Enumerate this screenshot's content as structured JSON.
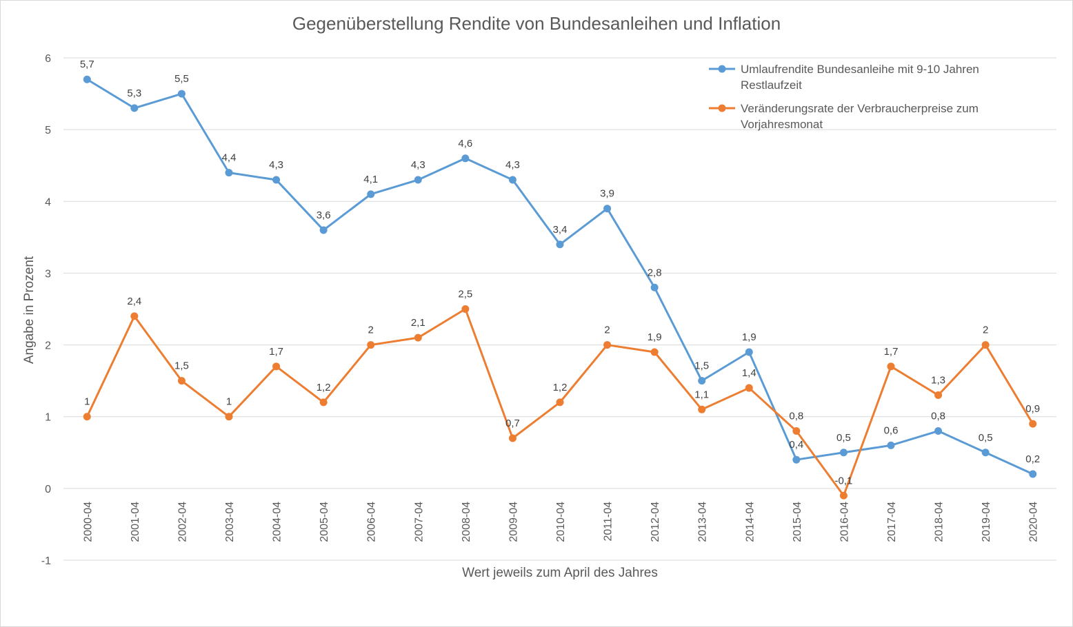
{
  "chart_data": {
    "type": "line",
    "title": "Gegenüberstellung Rendite von Bundesanleihen und Inflation",
    "xlabel": "Wert jeweils zum April des Jahres",
    "ylabel": "Angabe in Prozent",
    "ylim": [
      -1,
      6
    ],
    "yticks": [
      "-1",
      "0",
      "1",
      "2",
      "3",
      "4",
      "5",
      "6"
    ],
    "grid": true,
    "legend_position": "top-right",
    "categories": [
      "2000-04",
      "2001-04",
      "2002-04",
      "2003-04",
      "2004-04",
      "2005-04",
      "2006-04",
      "2007-04",
      "2008-04",
      "2009-04",
      "2010-04",
      "2011-04",
      "2012-04",
      "2013-04",
      "2014-04",
      "2015-04",
      "2016-04",
      "2017-04",
      "2018-04",
      "2019-04",
      "2020-04"
    ],
    "series": [
      {
        "name": "Umlaufrendite Bundesanleihe mit 9-10 Jahren Restlaufzeit",
        "legend_lines": [
          "Umlaufrendite Bundesanleihe mit 9-10 Jahren",
          "Restlaufzeit"
        ],
        "color": "#5b9bd5",
        "values": [
          5.7,
          5.3,
          5.5,
          4.4,
          4.3,
          3.6,
          4.1,
          4.3,
          4.6,
          4.3,
          3.4,
          3.9,
          2.8,
          1.5,
          1.9,
          0.4,
          0.5,
          0.6,
          0.8,
          0.5,
          0.2
        ],
        "labels": [
          "5,7",
          "5,3",
          "5,5",
          "4,4",
          "4,3",
          "3,6",
          "4,1",
          "4,3",
          "4,6",
          "4,3",
          "3,4",
          "3,9",
          "2,8",
          "1,5",
          "1,9",
          "0,4",
          "0,5",
          "0,6",
          "0,8",
          "0,5",
          "0,2"
        ]
      },
      {
        "name": "Veränderungsrate der Verbraucherpreise zum Vorjahresmonat",
        "legend_lines": [
          "Veränderungsrate der Verbraucherpreise zum",
          "Vorjahresmonat"
        ],
        "color": "#ed7d31",
        "values": [
          1,
          2.4,
          1.5,
          1,
          1.7,
          1.2,
          2,
          2.1,
          2.5,
          0.7,
          1.2,
          2,
          1.9,
          1.1,
          1.4,
          0.8,
          -0.1,
          1.7,
          1.3,
          2,
          0.9
        ],
        "labels": [
          "1",
          "2,4",
          "1,5",
          "1",
          "1,7",
          "1,2",
          "2",
          "2,1",
          "2,5",
          "0,7",
          "1,2",
          "2",
          "1,9",
          "1,1",
          "1,4",
          "0,8",
          "-0,1",
          "1,7",
          "1,3",
          "2",
          "0,9"
        ]
      }
    ]
  }
}
